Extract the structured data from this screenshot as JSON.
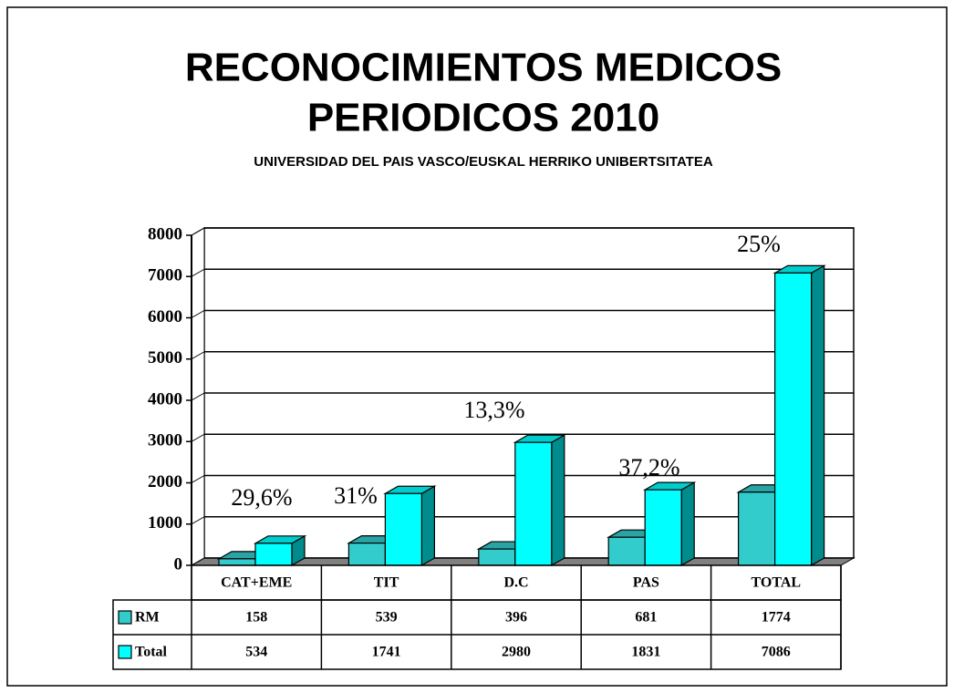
{
  "chart_data": {
    "type": "bar3d",
    "title": [
      "RECONOCIMIENTOS MEDICOS",
      "PERIODICOS 2010"
    ],
    "subtitle": "UNIVERSIDAD DEL PAIS VASCO/EUSKAL HERRIKO UNIBERTSITATEA",
    "categories": [
      "CAT+EME",
      "TIT",
      "D.C",
      "PAS",
      "TOTAL"
    ],
    "series": [
      {
        "name": "RM",
        "color": "#33cccc",
        "values": [
          158,
          539,
          396,
          681,
          1774
        ]
      },
      {
        "name": "Total",
        "color": "#00ffff",
        "values": [
          534,
          1741,
          2980,
          1831,
          7086
        ]
      }
    ],
    "annotations": [
      "29,6%",
      "31%",
      "13,3%",
      "37,2%",
      "25%"
    ],
    "ylim": [
      0,
      8000
    ],
    "yticks": [
      0,
      1000,
      2000,
      3000,
      4000,
      5000,
      6000,
      7000,
      8000
    ],
    "grid": true,
    "data_table": true
  }
}
